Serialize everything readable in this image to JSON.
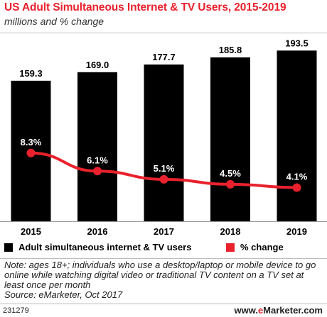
{
  "header": {
    "title": "US Adult Simultaneous Internet & TV Users, 2015-2019",
    "subtitle": "millions and % change"
  },
  "chart_data": {
    "type": "bar",
    "categories": [
      "2015",
      "2016",
      "2017",
      "2018",
      "2019"
    ],
    "series": [
      {
        "name": "Adult simultaneous internet & TV users",
        "type": "bar",
        "color": "#000000",
        "values": [
          159.3,
          169.0,
          177.7,
          185.8,
          193.5
        ],
        "labels": [
          "159.3",
          "169.0",
          "177.7",
          "185.8",
          "193.5"
        ]
      },
      {
        "name": "% change",
        "type": "line",
        "color": "#e8212d",
        "values": [
          8.3,
          6.1,
          5.1,
          4.5,
          4.1
        ],
        "labels": [
          "8.3%",
          "6.1%",
          "5.1%",
          "4.5%",
          "4.1%"
        ]
      }
    ],
    "ylim_bar": [
      0,
      205
    ],
    "ylim_line": [
      0,
      22
    ],
    "legend_position": "bottom",
    "grid": false
  },
  "legend": {
    "bars_label": "Adult simultaneous internet & TV users",
    "line_label": "% change",
    "bars_color": "#000000",
    "line_color": "#e8212d"
  },
  "note": {
    "text": "Note: ages 18+; individuals who use a desktop/laptop or mobile device to go online while watching digital video or traditional TV content on a TV set at least once per month",
    "source": "Source: eMarketer, Oct 2017"
  },
  "footer": {
    "chart_id": "231279",
    "brand_prefix": "www.",
    "brand_e": "e",
    "brand_suffix": "Marketer.com"
  }
}
